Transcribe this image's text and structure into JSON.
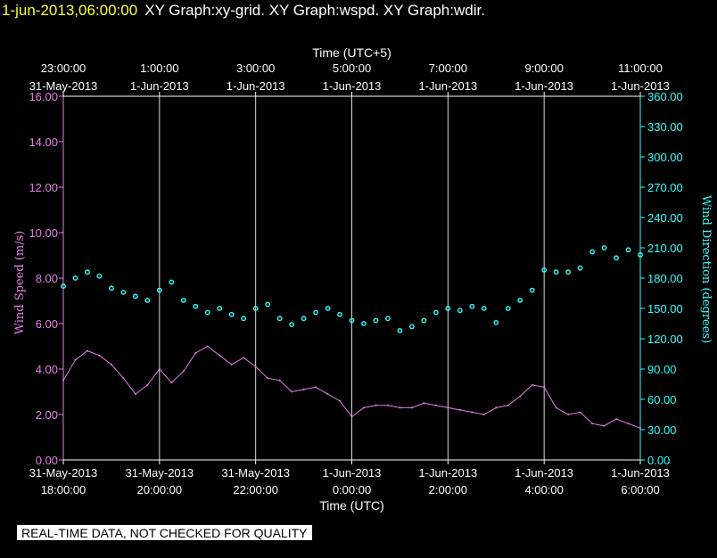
{
  "header": {
    "timestamp": "1-jun-2013,06:00:00",
    "graphs": "XY Graph:xy-grid.  XY Graph:wspd.  XY Graph:wdir."
  },
  "notice": "REAL-TIME DATA, NOT CHECKED FOR QUALITY",
  "colors": {
    "speed": "#e87ee8",
    "direction": "#33ffff",
    "axis": "#ffffff",
    "grid": "#ffffff",
    "background": "#000000"
  },
  "chart_data": {
    "type": "line",
    "xlabel": "Time (UTC)",
    "x2label": "Time (UTC+5)",
    "ylabel": "Wind Speed (m/s)",
    "y2label": "Wind Direction (degrees)",
    "xlim_hours_utc": [
      18,
      30
    ],
    "x_ticks": [
      {
        "date": "31-May-2013",
        "time": "18:00:00",
        "hour": 18
      },
      {
        "date": "31-May-2013",
        "time": "20:00:00",
        "hour": 20
      },
      {
        "date": "31-May-2013",
        "time": "22:00:00",
        "hour": 22
      },
      {
        "date": "1-Jun-2013",
        "time": "0:00:00",
        "hour": 24
      },
      {
        "date": "1-Jun-2013",
        "time": "2:00:00",
        "hour": 26
      },
      {
        "date": "1-Jun-2013",
        "time": "4:00:00",
        "hour": 28
      },
      {
        "date": "1-Jun-2013",
        "time": "6:00:00",
        "hour": 30
      }
    ],
    "x2_ticks": [
      {
        "time": "23:00:00",
        "date": "31-May-2013"
      },
      {
        "time": "1:00:00",
        "date": "1-Jun-2013"
      },
      {
        "time": "3:00:00",
        "date": "1-Jun-2013"
      },
      {
        "time": "5:00:00",
        "date": "1-Jun-2013"
      },
      {
        "time": "7:00:00",
        "date": "1-Jun-2013"
      },
      {
        "time": "9:00:00",
        "date": "1-Jun-2013"
      },
      {
        "time": "11:00:00",
        "date": "1-Jun-2013"
      }
    ],
    "ylim": [
      0,
      16
    ],
    "y_ticks": [
      "0.00",
      "2.00",
      "4.00",
      "6.00",
      "8.00",
      "10.00",
      "12.00",
      "14.00",
      "16.00"
    ],
    "y2lim": [
      0,
      360
    ],
    "y2_ticks": [
      "0.00",
      "30.00",
      "60.00",
      "90.00",
      "120.00",
      "150.00",
      "180.00",
      "210.00",
      "240.00",
      "270.00",
      "300.00",
      "330.00",
      "360.00"
    ],
    "grid": "vertical",
    "series": [
      {
        "id": "wspd",
        "style": "line",
        "axis": "left",
        "x_hours": [
          18.0,
          18.25,
          18.5,
          18.75,
          19.0,
          19.25,
          19.5,
          19.75,
          20.0,
          20.25,
          20.5,
          20.75,
          21.0,
          21.25,
          21.5,
          21.75,
          22.0,
          22.25,
          22.5,
          22.75,
          23.0,
          23.25,
          23.5,
          23.75,
          24.0,
          24.25,
          24.5,
          24.75,
          25.0,
          25.25,
          25.5,
          25.75,
          26.0,
          26.25,
          26.5,
          26.75,
          27.0,
          27.25,
          27.5,
          27.75,
          28.0,
          28.25,
          28.5,
          28.75,
          29.0,
          29.25,
          29.5,
          29.75,
          30.0
        ],
        "values": [
          3.5,
          4.4,
          4.8,
          4.6,
          4.2,
          3.6,
          2.9,
          3.3,
          4.0,
          3.4,
          3.9,
          4.7,
          5.0,
          4.6,
          4.2,
          4.5,
          4.1,
          3.6,
          3.5,
          3.0,
          3.1,
          3.2,
          2.9,
          2.6,
          1.9,
          2.3,
          2.4,
          2.4,
          2.3,
          2.3,
          2.5,
          2.4,
          2.3,
          2.2,
          2.1,
          2.0,
          2.3,
          2.4,
          2.8,
          3.3,
          3.2,
          2.3,
          2.0,
          2.1,
          1.6,
          1.5,
          1.8,
          1.6,
          1.4
        ]
      },
      {
        "id": "wdir",
        "style": "scatter",
        "axis": "right",
        "x_hours": [
          18.0,
          18.25,
          18.5,
          18.75,
          19.0,
          19.25,
          19.5,
          19.75,
          20.0,
          20.25,
          20.5,
          20.75,
          21.0,
          21.25,
          21.5,
          21.75,
          22.0,
          22.25,
          22.5,
          22.75,
          23.0,
          23.25,
          23.5,
          23.75,
          24.0,
          24.25,
          24.5,
          24.75,
          25.0,
          25.25,
          25.5,
          25.75,
          26.0,
          26.25,
          26.5,
          26.75,
          27.0,
          27.25,
          27.5,
          27.75,
          28.0,
          28.25,
          28.5,
          28.75,
          29.0,
          29.25,
          29.5,
          29.75,
          30.0
        ],
        "values": [
          172,
          180,
          186,
          182,
          170,
          166,
          162,
          158,
          168,
          176,
          158,
          152,
          146,
          150,
          144,
          140,
          150,
          154,
          140,
          134,
          140,
          146,
          150,
          144,
          138,
          135,
          138,
          140,
          128,
          132,
          138,
          146,
          150,
          148,
          152,
          150,
          136,
          150,
          158,
          168,
          188,
          186,
          186,
          190,
          206,
          210,
          200,
          208,
          203
        ]
      }
    ]
  }
}
